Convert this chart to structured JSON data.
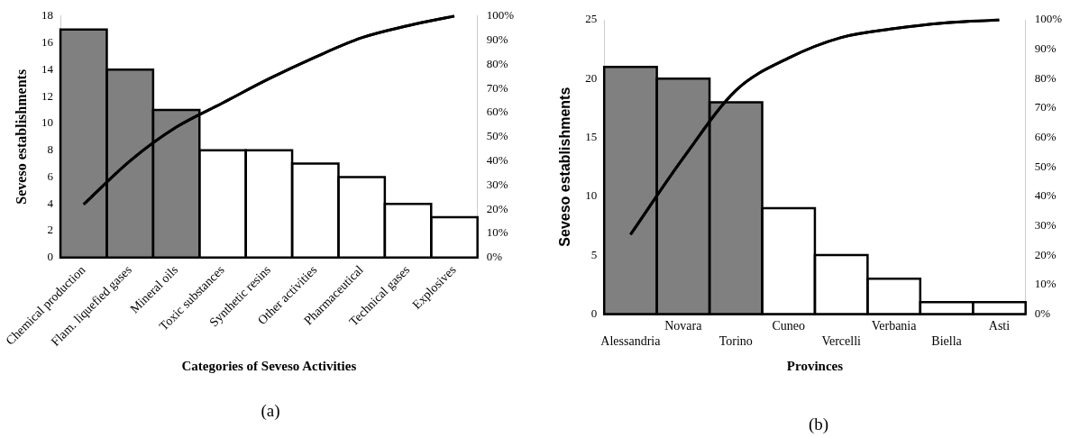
{
  "chart_data": [
    {
      "type": "bar",
      "categories": [
        "Chemical production",
        "Flam. liquefied gases",
        "Mineral oils",
        "Toxic substances",
        "Synthetic resins",
        "Other activities",
        "Pharmaceutical",
        "Technical gases",
        "Explosives"
      ],
      "series": [
        {
          "values": [
            17,
            14,
            11,
            8,
            8,
            7,
            6,
            4,
            3
          ],
          "colors": [
            "#808080",
            "#808080",
            "#808080",
            "#ffffff",
            "#ffffff",
            "#ffffff",
            "#ffffff",
            "#ffffff",
            "#ffffff"
          ]
        },
        {
          "type": "line",
          "axis": "y2",
          "color": "#000000",
          "values": [
            22,
            40,
            54,
            64,
            74,
            83,
            91,
            96,
            100
          ]
        }
      ],
      "xlabel": "Categories of Seveso Activities",
      "ylabel": "Seveso establishments",
      "ylim": [
        0,
        18
      ],
      "yticks": [
        0,
        2,
        4,
        6,
        8,
        10,
        12,
        14,
        16,
        18
      ],
      "y2lim": [
        0,
        100
      ],
      "y2ticks": [
        {
          "value": 0,
          "label": "0%"
        },
        {
          "value": 10,
          "label": "10%"
        },
        {
          "value": 20,
          "label": "20%"
        },
        {
          "value": 30,
          "label": "30%"
        },
        {
          "value": 40,
          "label": "40%"
        },
        {
          "value": 50,
          "label": "50%"
        },
        {
          "value": 60,
          "label": "60%"
        },
        {
          "value": 70,
          "label": "70%"
        },
        {
          "value": 80,
          "label": "80%"
        },
        {
          "value": 90,
          "label": "90%"
        },
        {
          "value": 100,
          "label": "100%"
        }
      ],
      "grid": false,
      "legend": false,
      "marker": "none",
      "line_style": "solid",
      "annotations": [
        "(a)"
      ]
    },
    {
      "type": "bar",
      "categories": [
        "Alessandria",
        "Novara",
        "Torino",
        "Cuneo",
        "Vercelli",
        "Verbania",
        "Biella",
        "Asti"
      ],
      "series": [
        {
          "values": [
            21,
            20,
            18,
            9,
            5,
            3,
            1,
            1
          ],
          "colors": [
            "#808080",
            "#808080",
            "#808080",
            "#ffffff",
            "#ffffff",
            "#ffffff",
            "#ffffff",
            "#ffffff"
          ]
        },
        {
          "type": "line",
          "axis": "y2",
          "color": "#000000",
          "values": [
            27,
            53,
            76,
            87,
            94,
            97,
            99,
            100
          ]
        }
      ],
      "xlabel": "Provinces",
      "ylabel": "Seveso establishments",
      "ylim": [
        0,
        25
      ],
      "yticks": [
        0,
        5,
        10,
        15,
        20,
        25
      ],
      "y2lim": [
        0,
        100
      ],
      "y2ticks": [
        {
          "value": 0,
          "label": "0%"
        },
        {
          "value": 10,
          "label": "10%"
        },
        {
          "value": 20,
          "label": "20%"
        },
        {
          "value": 30,
          "label": "30%"
        },
        {
          "value": 40,
          "label": "40%"
        },
        {
          "value": 50,
          "label": "50%"
        },
        {
          "value": 60,
          "label": "60%"
        },
        {
          "value": 70,
          "label": "70%"
        },
        {
          "value": 80,
          "label": "80%"
        },
        {
          "value": 90,
          "label": "90%"
        },
        {
          "value": 100,
          "label": "100%"
        }
      ],
      "grid": false,
      "legend": false,
      "marker": "none",
      "line_style": "solid",
      "annotations": [
        "(b)"
      ]
    }
  ]
}
